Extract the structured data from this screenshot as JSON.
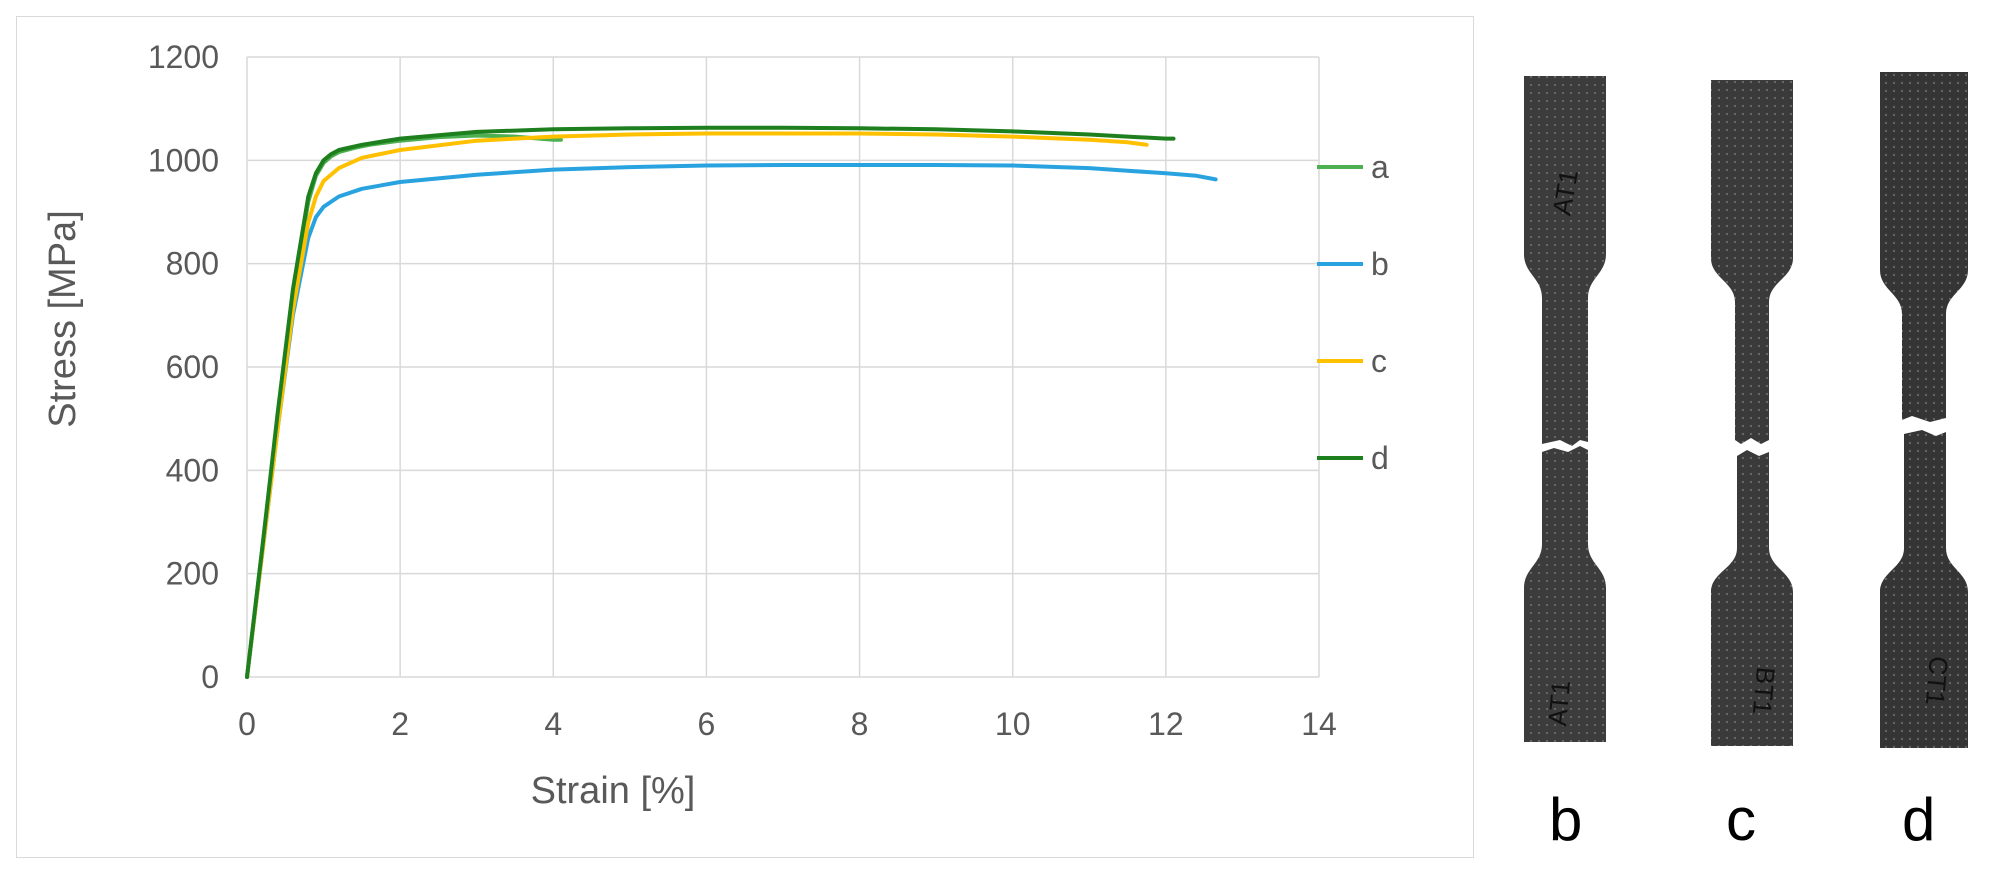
{
  "chart_data": {
    "type": "line",
    "xlabel": "Strain [%]",
    "ylabel": "Stress [MPa]",
    "xlim": [
      0,
      14
    ],
    "ylim": [
      0,
      1200
    ],
    "xticks": [
      0,
      2,
      4,
      6,
      8,
      10,
      12,
      14
    ],
    "yticks": [
      0,
      200,
      400,
      600,
      800,
      1000,
      1200
    ],
    "grid": true,
    "legend_position": "right",
    "series": [
      {
        "name": "a",
        "color": "#4caf50",
        "x": [
          0,
          0.2,
          0.4,
          0.6,
          0.8,
          0.9,
          1.0,
          1.1,
          1.2,
          1.4,
          1.6,
          2.0,
          2.5,
          3.0,
          3.5,
          4.0,
          4.1
        ],
        "y": [
          0,
          250,
          500,
          740,
          920,
          970,
          995,
          1008,
          1016,
          1024,
          1030,
          1038,
          1045,
          1048,
          1046,
          1040,
          1040
        ]
      },
      {
        "name": "b",
        "color": "#29a3e0",
        "x": [
          0,
          0.2,
          0.4,
          0.6,
          0.8,
          0.9,
          1.0,
          1.2,
          1.5,
          2.0,
          3.0,
          4.0,
          5.0,
          6.0,
          7.0,
          8.0,
          9.0,
          10.0,
          11.0,
          11.5,
          12.0,
          12.4,
          12.65
        ],
        "y": [
          0,
          240,
          480,
          700,
          850,
          890,
          910,
          930,
          945,
          958,
          972,
          982,
          987,
          990,
          991,
          991,
          991,
          990,
          985,
          980,
          975,
          970,
          963
        ]
      },
      {
        "name": "c",
        "color": "#ffc000",
        "x": [
          0,
          0.2,
          0.4,
          0.6,
          0.8,
          0.9,
          1.0,
          1.2,
          1.5,
          2.0,
          3.0,
          4.0,
          5.0,
          6.0,
          7.0,
          8.0,
          9.0,
          10.0,
          11.0,
          11.5,
          11.75
        ],
        "y": [
          0,
          240,
          480,
          710,
          880,
          930,
          960,
          985,
          1005,
          1020,
          1038,
          1046,
          1050,
          1052,
          1052,
          1052,
          1050,
          1046,
          1040,
          1035,
          1030
        ]
      },
      {
        "name": "d",
        "color": "#1e7f1e",
        "x": [
          0,
          0.2,
          0.4,
          0.6,
          0.8,
          0.9,
          1.0,
          1.1,
          1.2,
          1.5,
          2.0,
          3.0,
          4.0,
          5.0,
          6.0,
          7.0,
          8.0,
          9.0,
          10.0,
          11.0,
          11.5,
          12.0,
          12.1
        ],
        "y": [
          0,
          250,
          510,
          750,
          930,
          975,
          1000,
          1012,
          1020,
          1030,
          1042,
          1055,
          1060,
          1062,
          1063,
          1063,
          1062,
          1060,
          1056,
          1050,
          1046,
          1042,
          1042
        ]
      }
    ]
  },
  "photo_panel": {
    "labels": [
      "b",
      "c",
      "d"
    ],
    "specimen_markings": [
      "AT1",
      "AT1",
      "BT1",
      "CT1"
    ],
    "specimen_color": "#3a3a3a"
  }
}
